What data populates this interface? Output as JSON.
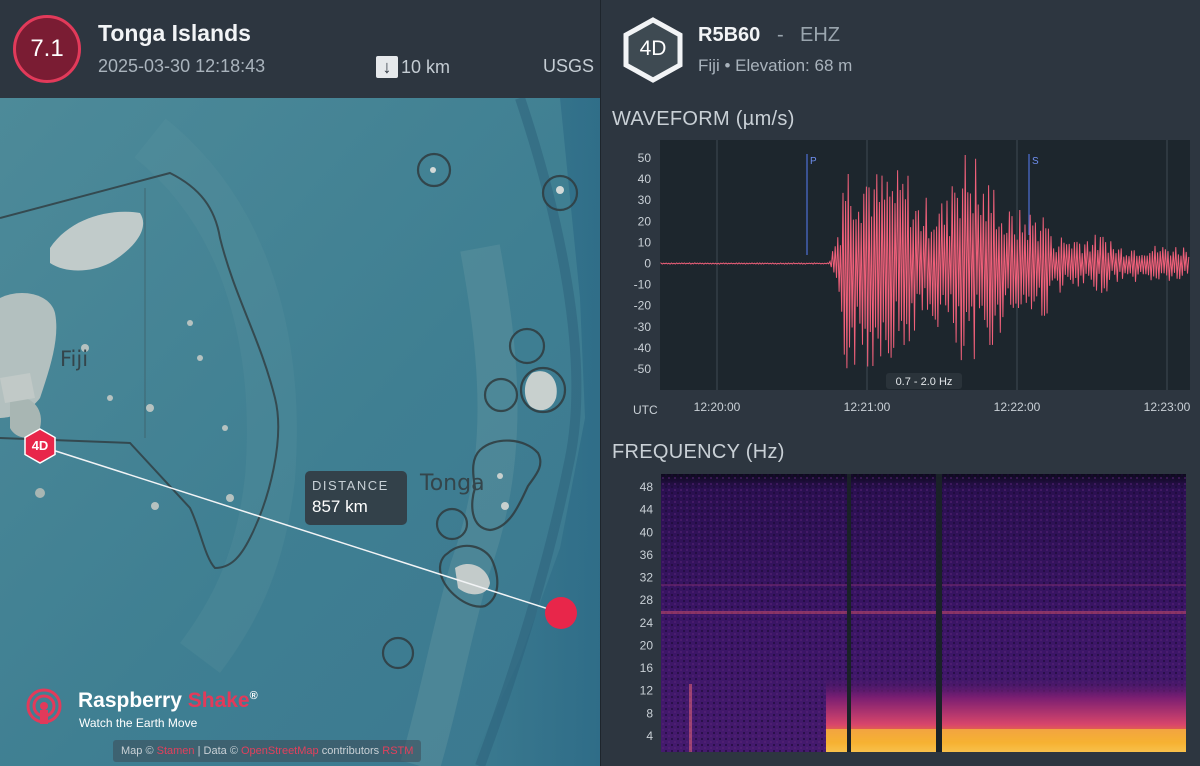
{
  "earthquake": {
    "magnitude": "7.1",
    "title": "Tonga Islands",
    "datetime": "2025-03-30 12:18:43",
    "depth": "10 km",
    "depth_icon": "arrow-down-icon",
    "source": "USGS"
  },
  "map": {
    "distance_label": "DISTANCE",
    "distance_value": "857 km",
    "station_marker": "4D",
    "label_fiji": "Fiji",
    "label_tonga": "Tonga",
    "brand_name_a": "Raspberry",
    "brand_name_b": "Shake",
    "brand_reg": "®",
    "brand_tagline": "Watch the Earth Move",
    "attribution": {
      "prefix": "Map ©",
      "link1": "Stamen",
      "mid": "| Data ©",
      "link2": "OpenStreetMap",
      "suffix": "contributors",
      "link3": "RSTM"
    },
    "colors": {
      "ocean": "#3f7f92",
      "land": "#8fa7a8",
      "epicenter": "#e8264a",
      "brand_accent": "#e23a5a"
    }
  },
  "station": {
    "network": "4D",
    "id": "R5B60",
    "separator": "-",
    "channel": "EHZ",
    "location": "Fiji • Elevation: 68 m"
  },
  "waveform": {
    "title": "WAVEFORM (µm/s)",
    "y_ticks": [
      "50",
      "40",
      "30",
      "20",
      "10",
      "0",
      "-10",
      "-20",
      "-30",
      "-40",
      "-50"
    ],
    "x_ticks": [
      "12:20:00",
      "12:21:00",
      "12:22:00",
      "12:23:00"
    ],
    "tz_label": "UTC",
    "filter_label": "0.7 - 2.0 Hz",
    "phase_p": "P",
    "phase_s": "S",
    "trace_color": "#f0607a",
    "phase_color": "#4d6fd6"
  },
  "frequency": {
    "title": "FREQUENCY (Hz)",
    "y_ticks": [
      "48",
      "44",
      "40",
      "36",
      "32",
      "28",
      "24",
      "20",
      "16",
      "12",
      "8",
      "4"
    ]
  },
  "chart_data": [
    {
      "type": "line",
      "title": "WAVEFORM (µm/s)",
      "xlabel": "UTC",
      "ylabel": "µm/s",
      "x_ticks": [
        "12:20:00",
        "12:21:00",
        "12:22:00",
        "12:23:00"
      ],
      "ylim": [
        -55,
        55
      ],
      "series": [
        {
          "x": [
            "12:19:00",
            "12:20:00",
            "12:20:45",
            "12:20:48",
            "12:20:52",
            "12:21:00",
            "12:21:10",
            "12:21:20",
            "12:21:30",
            "12:21:38",
            "12:21:45",
            "12:21:55",
            "12:22:10",
            "12:22:30",
            "12:22:50",
            "12:23:05"
          ],
          "values": [
            0,
            0,
            0,
            -50,
            48,
            -45,
            52,
            -48,
            40,
            -55,
            50,
            -30,
            22,
            -15,
            10,
            -6
          ]
        }
      ],
      "annotations": [
        "P at ~12:20:36",
        "S at ~12:22:04",
        "0.7 - 2.0 Hz"
      ],
      "grid": true
    },
    {
      "type": "heatmap",
      "title": "FREQUENCY (Hz)",
      "y_ticks": [
        "48",
        "44",
        "40",
        "36",
        "32",
        "28",
        "24",
        "20",
        "16",
        "12",
        "8",
        "4"
      ],
      "ylim": [
        0,
        50
      ],
      "note": "spectrogram; energy concentrated below ~12 Hz after P arrival, narrow band near 26 Hz"
    }
  ]
}
